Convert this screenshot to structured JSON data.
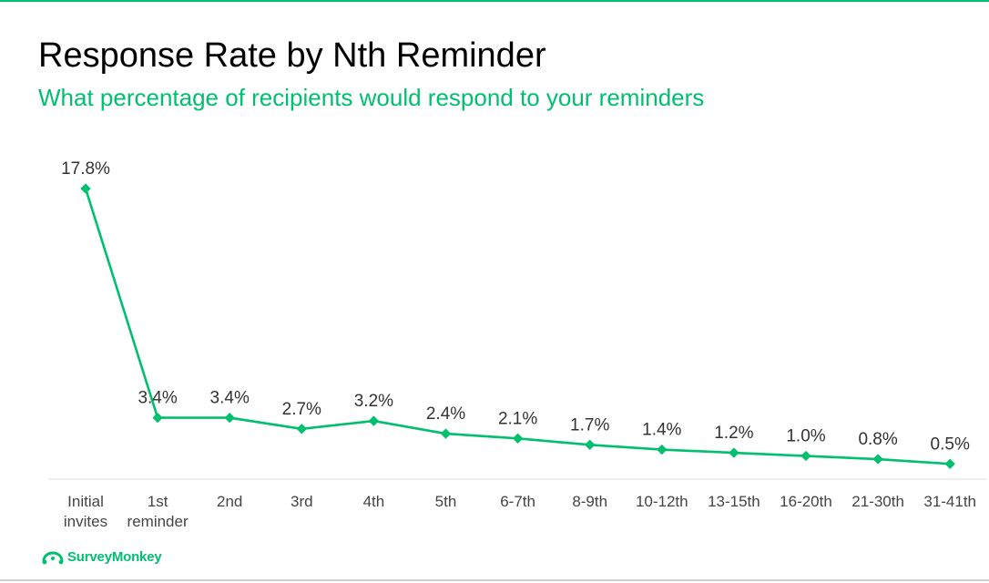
{
  "title": "Response Rate by Nth Reminder",
  "subtitle": "What percentage of recipients would respond to your reminders",
  "brand": {
    "name": "SurveyMonkey",
    "logo_icon": "surveymonkey-logo-icon",
    "color": "#00bf6f"
  },
  "colors": {
    "line": "#00bf6f",
    "text": "#333333",
    "accent": "#00bf6f"
  },
  "chart_data": {
    "type": "line",
    "categories": [
      [
        "Initial",
        "invites"
      ],
      [
        "1st",
        "reminder"
      ],
      [
        "2nd"
      ],
      [
        "3rd"
      ],
      [
        "4th"
      ],
      [
        "5th"
      ],
      [
        "6-7th"
      ],
      [
        "8-9th"
      ],
      [
        "10-12th"
      ],
      [
        "13-15th"
      ],
      [
        "16-20th"
      ],
      [
        "21-30th"
      ],
      [
        "31-41th"
      ]
    ],
    "values": [
      17.8,
      3.4,
      3.4,
      2.7,
      3.2,
      2.4,
      2.1,
      1.7,
      1.4,
      1.2,
      1.0,
      0.8,
      0.5
    ],
    "data_labels": [
      "17.8%",
      "3.4%",
      "3.4%",
      "2.7%",
      "3.2%",
      "2.4%",
      "2.1%",
      "1.7%",
      "1.4%",
      "1.2%",
      "1.0%",
      "0.8%",
      "0.5%"
    ],
    "ylim": [
      0,
      18.5
    ],
    "grid": false,
    "legend": "none"
  }
}
